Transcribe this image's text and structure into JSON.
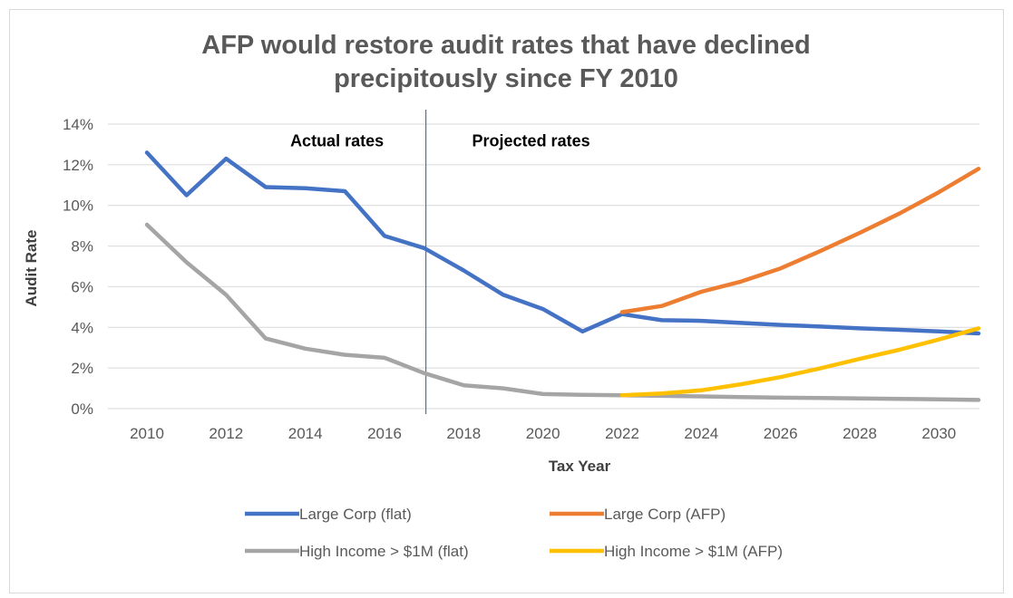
{
  "chart_data": {
    "type": "line",
    "title": [
      "AFP would restore audit rates that have declined",
      "precipitously since FY 2010"
    ],
    "xlabel": "Tax Year",
    "ylabel": "Audit Rate",
    "xlim": [
      2010,
      2031
    ],
    "ylim": [
      0,
      14
    ],
    "x_ticks": [
      "2010",
      "2012",
      "2014",
      "2016",
      "2018",
      "2020",
      "2022",
      "2024",
      "2026",
      "2028",
      "2030"
    ],
    "y_ticks": [
      "0%",
      "2%",
      "4%",
      "6%",
      "8%",
      "10%",
      "12%",
      "14%"
    ],
    "grid": "horizontal",
    "divider_x": 2017,
    "annotations": [
      {
        "text": "Actual rates",
        "x": 2014.8,
        "y": 12.9
      },
      {
        "text": "Projected rates",
        "x": 2019.7,
        "y": 12.9
      }
    ],
    "legend_position": "bottom",
    "series": [
      {
        "name": "Large Corp (flat)",
        "color": "#4472c4",
        "x": [
          2010,
          2011,
          2012,
          2013,
          2014,
          2015,
          2016,
          2017,
          2018,
          2019,
          2020,
          2021,
          2022,
          2023,
          2024,
          2025,
          2026,
          2027,
          2028,
          2029,
          2030,
          2031
        ],
        "values": [
          12.6,
          10.5,
          12.3,
          10.9,
          10.85,
          10.7,
          8.5,
          7.9,
          6.8,
          5.6,
          4.9,
          3.8,
          4.65,
          4.35,
          4.32,
          4.22,
          4.12,
          4.04,
          3.95,
          3.88,
          3.8,
          3.7
        ]
      },
      {
        "name": "Large Corp (AFP)",
        "color": "#ed7d31",
        "x": [
          2022,
          2023,
          2024,
          2025,
          2026,
          2027,
          2028,
          2029,
          2030,
          2031
        ],
        "values": [
          4.75,
          5.05,
          5.75,
          6.25,
          6.9,
          7.75,
          8.65,
          9.6,
          10.65,
          11.8
        ]
      },
      {
        "name": "High Income > $1M (flat)",
        "color": "#a5a5a5",
        "x": [
          2010,
          2011,
          2012,
          2013,
          2014,
          2015,
          2016,
          2017,
          2018,
          2019,
          2020,
          2021,
          2022,
          2023,
          2024,
          2025,
          2026,
          2027,
          2028,
          2029,
          2030,
          2031
        ],
        "values": [
          9.05,
          7.2,
          5.6,
          3.45,
          2.95,
          2.65,
          2.5,
          1.75,
          1.15,
          1.0,
          0.72,
          0.68,
          0.66,
          0.63,
          0.6,
          0.57,
          0.54,
          0.52,
          0.5,
          0.48,
          0.46,
          0.43
        ]
      },
      {
        "name": "High Income > $1M (AFP)",
        "color": "#ffc000",
        "x": [
          2022,
          2023,
          2024,
          2025,
          2026,
          2027,
          2028,
          2029,
          2030,
          2031
        ],
        "values": [
          0.66,
          0.75,
          0.9,
          1.2,
          1.55,
          1.98,
          2.45,
          2.9,
          3.4,
          3.95
        ]
      }
    ]
  }
}
